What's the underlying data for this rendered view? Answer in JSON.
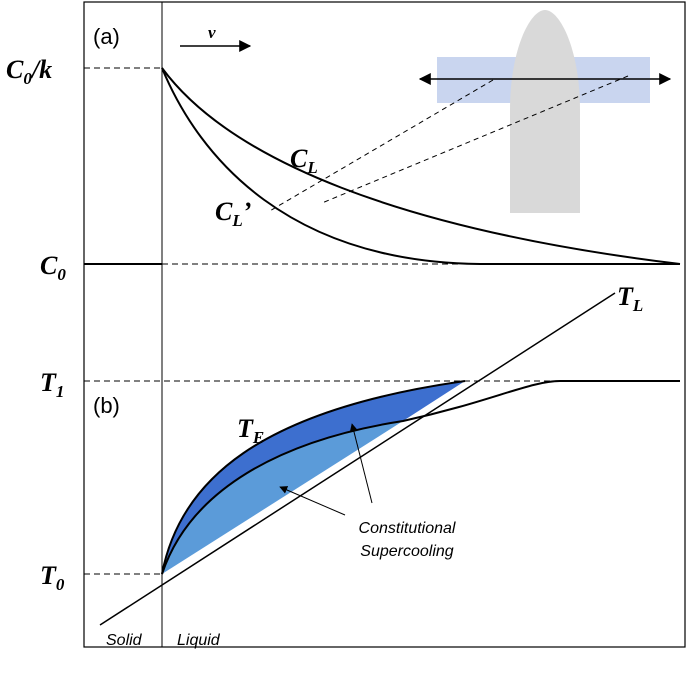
{
  "panel_a": {
    "label": "(a)",
    "velocity": "v",
    "c0k": {
      "base": "C",
      "sub": "0",
      "suffix": "/k"
    },
    "c0": {
      "base": "C",
      "sub": "0"
    },
    "cl": {
      "base": "C",
      "sub": "L"
    },
    "cl_prime": {
      "base": "C",
      "sub": "L",
      "suffix": "’"
    }
  },
  "panel_b": {
    "label": "(b)",
    "tl": {
      "base": "T",
      "sub": "L"
    },
    "t1": {
      "base": "T",
      "sub": "1"
    },
    "te": {
      "base": "T",
      "sub": "E"
    },
    "t0": {
      "base": "T",
      "sub": "0"
    },
    "annotation": [
      "Constitutional",
      "Supercooling"
    ],
    "solid": "Solid",
    "liquid": "Liquid"
  }
}
